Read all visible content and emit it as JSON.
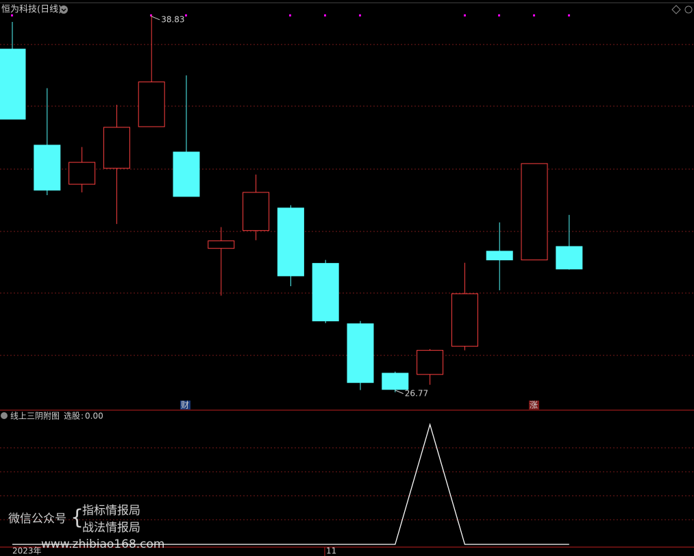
{
  "chart_data": [
    {
      "type": "candlestick",
      "title": "恒为科技(日线)",
      "open": [
        37.74,
        34.67,
        33.42,
        33.93,
        35.26,
        34.45,
        31.37,
        31.94,
        32.66,
        30.89,
        28.96,
        27.38,
        27.34,
        28.24,
        31.28,
        31.0,
        31.43
      ],
      "high": [
        38.61,
        36.49,
        34.61,
        35.96,
        38.83,
        36.9,
        32.05,
        33.73,
        32.75,
        31.0,
        29.05,
        27.43,
        28.15,
        30.91,
        32.2,
        34.08,
        32.44
      ],
      "low": [
        35.5,
        33.07,
        33.16,
        32.15,
        35.26,
        33.03,
        29.86,
        31.63,
        30.16,
        28.98,
        26.84,
        26.77,
        27.01,
        28.11,
        30.03,
        31.0,
        30.69
      ],
      "close": [
        35.5,
        33.23,
        34.12,
        35.24,
        36.69,
        33.03,
        31.61,
        33.16,
        30.49,
        29.05,
        27.08,
        26.86,
        28.11,
        29.92,
        31.0,
        34.08,
        30.71
      ],
      "ylim": [
        26.22,
        39.2
      ],
      "up_color": "#ff4040",
      "down_color": "#54fcfc",
      "annotations": [
        {
          "text": "38.83",
          "value": 38.83
        },
        {
          "text": "26.77",
          "value": 26.77
        }
      ],
      "events": [
        "财",
        "涨"
      ]
    },
    {
      "type": "line",
      "title": "线上三阴附图",
      "series": [
        {
          "name": "选股",
          "color": "#ffffff",
          "values": [
            0,
            0,
            0,
            0,
            0,
            0,
            0,
            0,
            0,
            0,
            0,
            0,
            1,
            0,
            0,
            0,
            0
          ],
          "last_value_label": "0.00"
        }
      ],
      "ylim": [
        0,
        1
      ],
      "x_labels": [
        "2023年",
        "11"
      ]
    }
  ],
  "watermark": {
    "label": "微信公众号",
    "lines": [
      "指标情报局",
      "战法情报局"
    ],
    "url": "www.zhibiao168.com"
  }
}
